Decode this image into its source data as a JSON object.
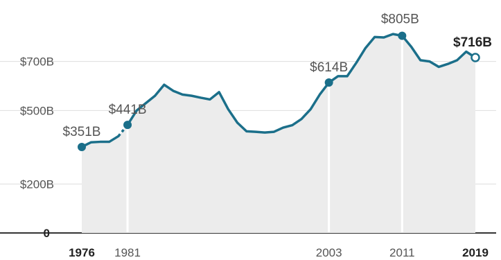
{
  "chart_data": {
    "type": "area",
    "title": "",
    "xlabel": "",
    "ylabel": "",
    "xlim": [
      1976,
      2019
    ],
    "ylim": [
      0,
      900
    ],
    "grid": true,
    "yticks": [
      {
        "value": 700,
        "label": "$700B"
      },
      {
        "value": 500,
        "label": "$500B"
      },
      {
        "value": 200,
        "label": "$200B"
      },
      {
        "value": 0,
        "label": "0"
      }
    ],
    "xticks": [
      {
        "value": 1976,
        "label": "1976",
        "bold": true
      },
      {
        "value": 1981,
        "label": "1981",
        "bold": false
      },
      {
        "value": 2003,
        "label": "2003",
        "bold": false
      },
      {
        "value": 2011,
        "label": "2011",
        "bold": false
      },
      {
        "value": 2019,
        "label": "2019",
        "bold": true
      }
    ],
    "divider_years": [
      1981,
      2003,
      2011
    ],
    "colors": {
      "line": "#1b6f8a",
      "area": "#ececec",
      "grid": "#dddddd",
      "divider": "#ffffff"
    },
    "x": [
      1976,
      1977,
      1978,
      1979,
      1980,
      1981,
      1982,
      1983,
      1984,
      1985,
      1986,
      1987,
      1988,
      1989,
      1990,
      1991,
      1992,
      1993,
      1994,
      1995,
      1996,
      1997,
      1998,
      1999,
      2000,
      2001,
      2002,
      2003,
      2004,
      2005,
      2006,
      2007,
      2008,
      2009,
      2010,
      2011,
      2012,
      2013,
      2014,
      2015,
      2016,
      2017,
      2018,
      2019
    ],
    "series": [
      {
        "values": [
          351,
          370,
          372,
          372,
          395,
          441,
          500,
          530,
          560,
          605,
          580,
          565,
          560,
          552,
          545,
          575,
          505,
          450,
          415,
          413,
          410,
          413,
          430,
          440,
          465,
          505,
          565,
          614,
          640,
          640,
          695,
          755,
          800,
          798,
          812,
          805,
          760,
          705,
          700,
          678,
          690,
          705,
          740,
          716
        ]
      }
    ],
    "annotations": [
      {
        "year": 1976,
        "value": 351,
        "label": "$351B",
        "bold": false,
        "hollow": false
      },
      {
        "year": 1981,
        "value": 441,
        "label": "$441B",
        "bold": false,
        "hollow": false
      },
      {
        "year": 2003,
        "value": 614,
        "label": "$614B",
        "bold": false,
        "hollow": false
      },
      {
        "year": 2011,
        "value": 805,
        "label": "$805B",
        "bold": false,
        "hollow": false
      },
      {
        "year": 2019,
        "value": 716,
        "label": "$716B",
        "bold": true,
        "hollow": true
      }
    ]
  }
}
